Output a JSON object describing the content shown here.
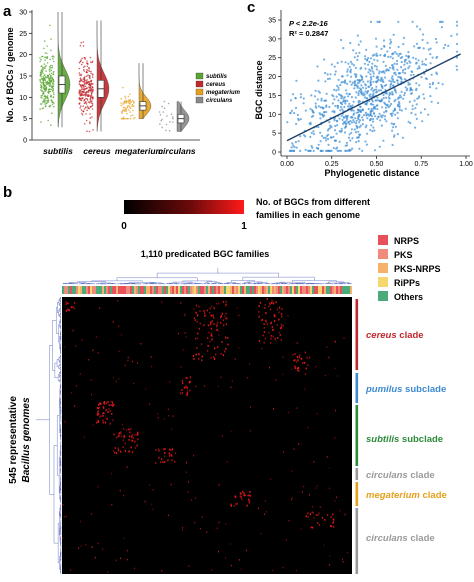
{
  "panel_labels": {
    "a": "a",
    "b": "b",
    "c": "c"
  },
  "colors": {
    "subtilis": "#5aa532",
    "cereus": "#c0282d",
    "megaterium": "#e6a11c",
    "circulans": "#8a8a8a",
    "scatter": "#3d8fd6",
    "fit": "#1f3f66",
    "heat_bg": "#000000",
    "heat_fg": "#ff1a1a",
    "nrps": "#e8505b",
    "pks": "#f08a7a",
    "pks_nrps": "#f4b26a",
    "ripps": "#f5d76e",
    "others": "#4caa7a",
    "dendro": "#4a5ab8",
    "pumilus": "#3d8bd0",
    "subtilis_clade": "#2f8a3a",
    "cereus_clade": "#c0282d",
    "megaterium_clade": "#e6a11c",
    "circulans_clade": "#9a9a9a"
  },
  "panel_a": {
    "ylabel": "No. of BGCs / genome",
    "yticks": [
      "0",
      "5",
      "10",
      "15",
      "20",
      "25",
      "30"
    ],
    "categories": [
      "subtilis",
      "cereus",
      "megaterium",
      "circulans"
    ],
    "legend": [
      "subtilis",
      "cereus",
      "megaterium",
      "circulans"
    ]
  },
  "panel_c": {
    "stat_p": "P < 2.2e-16",
    "stat_r": "R² = 0.2847",
    "xlabel": "Phylogenetic distance",
    "ylabel": "BGC distance",
    "xticks": [
      "0.00",
      "0.25",
      "0.50",
      "0.75",
      "1.00"
    ],
    "yticks": [
      "0",
      "5",
      "10",
      "15",
      "20",
      "25",
      "30",
      "35"
    ]
  },
  "panel_b": {
    "colorbar_title_1": "No. of BGCs from different",
    "colorbar_title_2": "families in each genome",
    "colorbar_min": "0",
    "colorbar_max": "1",
    "families_title": "1,110 predicated BGC families",
    "ylabel_1": "545 representative",
    "ylabel_2": "Bacillus genomes",
    "legend": [
      {
        "label": "NRPS",
        "key": "nrps"
      },
      {
        "label": "PKS",
        "key": "pks"
      },
      {
        "label": "PKS-NRPS",
        "key": "pks_nrps"
      },
      {
        "label": "RiPPs",
        "key": "ripps"
      },
      {
        "label": "Others",
        "key": "others"
      }
    ],
    "clades": [
      {
        "italic": "cereus",
        "rest": " clade",
        "key": "cereus_clade"
      },
      {
        "italic": "pumilus",
        "rest": " subclade",
        "key": "pumilus"
      },
      {
        "italic": "subtilis",
        "rest": " subclade",
        "key": "subtilis_clade"
      },
      {
        "italic": "circulans",
        "rest": " clade",
        "key": "circulans_clade"
      },
      {
        "italic": "megaterium",
        "rest": " clade",
        "key": "megaterium_clade"
      },
      {
        "italic": "circulans",
        "rest": " clade",
        "key": "circulans_clade"
      }
    ]
  },
  "chart_data": [
    {
      "type": "violin",
      "title": "",
      "xlabel": "",
      "ylabel": "No. of BGCs / genome",
      "ylim": [
        0,
        30
      ],
      "categories": [
        "subtilis",
        "cereus",
        "megaterium",
        "circulans"
      ],
      "series": [
        {
          "name": "subtilis",
          "median": 13,
          "q1": 11,
          "q3": 15,
          "min": 3,
          "max": 30
        },
        {
          "name": "cereus",
          "median": 12,
          "q1": 10,
          "q3": 14,
          "min": 2,
          "max": 28
        },
        {
          "name": "megaterium",
          "median": 8,
          "q1": 7,
          "q3": 9,
          "min": 5,
          "max": 18
        },
        {
          "name": "circulans",
          "median": 5,
          "q1": 4,
          "q3": 6,
          "min": 2,
          "max": 9
        }
      ]
    },
    {
      "type": "scatter",
      "title": "",
      "xlabel": "Phylogenetic distance",
      "ylabel": "BGC distance",
      "xlim": [
        0,
        1
      ],
      "ylim": [
        0,
        35
      ],
      "fit_line": {
        "x": [
          0.0,
          0.97
        ],
        "y": [
          3,
          26
        ]
      },
      "annotations": [
        "P < 2.2e-16",
        "R² = 0.2847"
      ]
    },
    {
      "type": "heatmap",
      "title": "1,110 predicated BGC families",
      "xlabel": "1,110 predicated BGC families",
      "ylabel": "545 representative Bacillus genomes",
      "rows": 545,
      "columns": 1110,
      "value_range": [
        0,
        1
      ],
      "column_classes": [
        "NRPS",
        "PKS",
        "PKS-NRPS",
        "RiPPs",
        "Others"
      ],
      "row_clades": [
        "cereus clade",
        "pumilus subclade",
        "subtilis subclade",
        "circulans clade",
        "megaterium clade",
        "circulans clade"
      ]
    }
  ]
}
